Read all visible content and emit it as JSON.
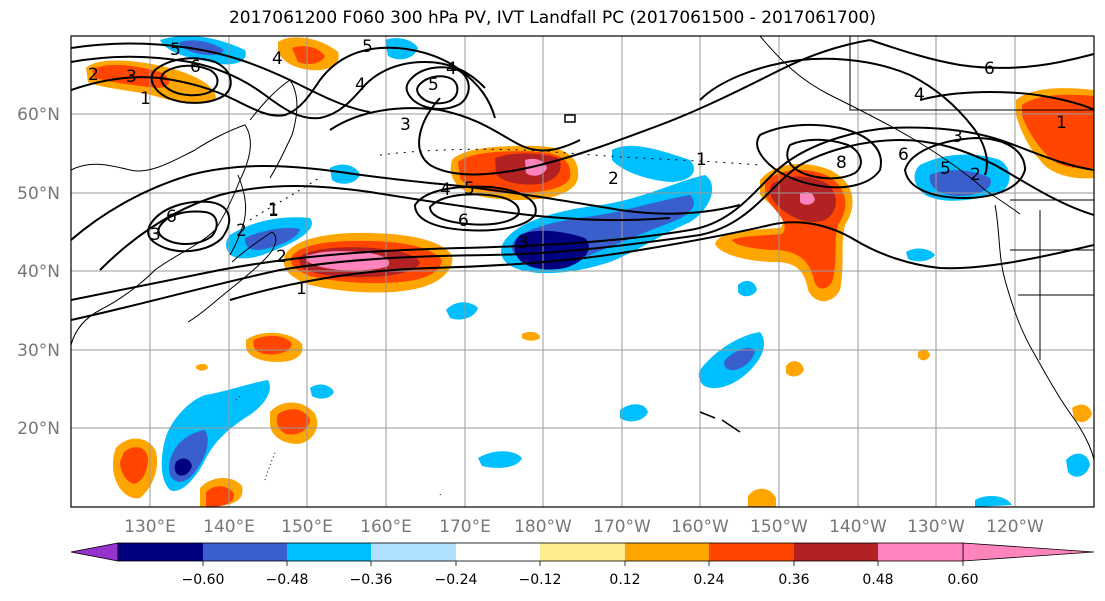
{
  "title": "2017061200 F060 300 hPa PV, IVT Landfall PC (2017061500 - 2017061700)",
  "lat_labels": [
    "60°N",
    "50°N",
    "40°N",
    "30°N",
    "20°N"
  ],
  "lon_labels": [
    "130°E",
    "140°E",
    "150°E",
    "160°E",
    "170°E",
    "180°W",
    "170°W",
    "160°W",
    "150°W",
    "140°W",
    "130°W",
    "120°W"
  ],
  "colorbar": {
    "colors": [
      "#9932cc",
      "#000080",
      "#3a5fcd",
      "#00bfff",
      "#b0e2ff",
      "#ffffff",
      "#ffec8b",
      "#ffa500",
      "#ff4500",
      "#b22222",
      "#ff83bd"
    ],
    "tick_labels": [
      "−0.60",
      "−0.48",
      "−0.36",
      "−0.24",
      "−0.12",
      "0.12",
      "0.24",
      "0.36",
      "0.48",
      "0.60"
    ]
  },
  "contour_labels": [
    "2",
    "3",
    "1",
    "5",
    "6",
    "4",
    "4",
    "5",
    "3",
    "4",
    "5",
    "6",
    "2",
    "1",
    "1",
    "2",
    "1",
    "3",
    "8",
    "6",
    "5",
    "3",
    "6",
    "4",
    "1",
    "2",
    "4",
    "5",
    "6",
    "3",
    "2",
    "1"
  ]
}
